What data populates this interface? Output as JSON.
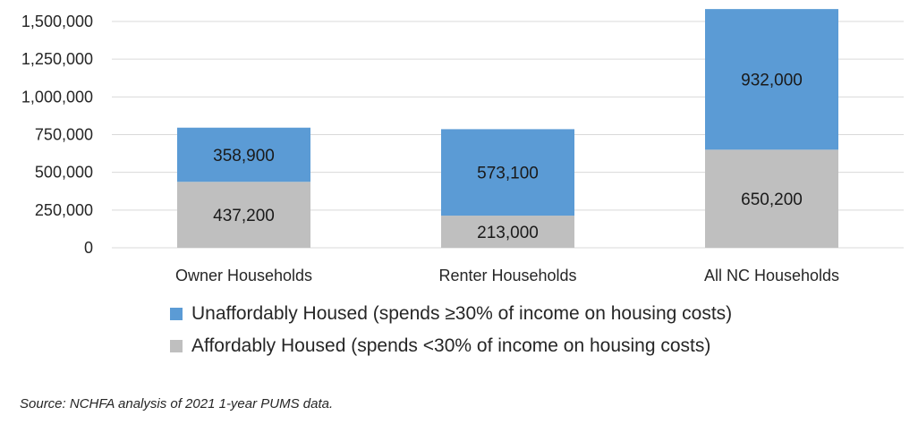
{
  "chart_data": {
    "type": "bar",
    "stacked": true,
    "categories": [
      "Owner Households",
      "Renter Households",
      "All NC Households"
    ],
    "series": [
      {
        "name": "Affordably Housed (spends <30% of income on housing costs)",
        "values": [
          437200,
          213000,
          650200
        ],
        "labels": [
          "437,200",
          "213,000",
          "650,200"
        ],
        "color": "#bfbfbf"
      },
      {
        "name": "Unaffordably Housed (spends ≥30% of income on housing costs)",
        "values": [
          358900,
          573100,
          932000
        ],
        "labels": [
          "358,900",
          "573,100",
          "932,000"
        ],
        "color": "#5b9bd5"
      }
    ],
    "ylim": [
      0,
      1500000
    ],
    "yticks": [
      0,
      250000,
      500000,
      750000,
      1000000,
      1250000,
      1500000
    ],
    "ytick_labels": [
      "0",
      "250,000",
      "500,000",
      "750,000",
      "1,000,000",
      "1,250,000",
      "1,500,000"
    ],
    "grid": true,
    "legend_placement": "bottom",
    "legend_order": [
      1,
      0
    ]
  },
  "source_note": "Source: NCHFA analysis of 2021 1-year PUMS data."
}
